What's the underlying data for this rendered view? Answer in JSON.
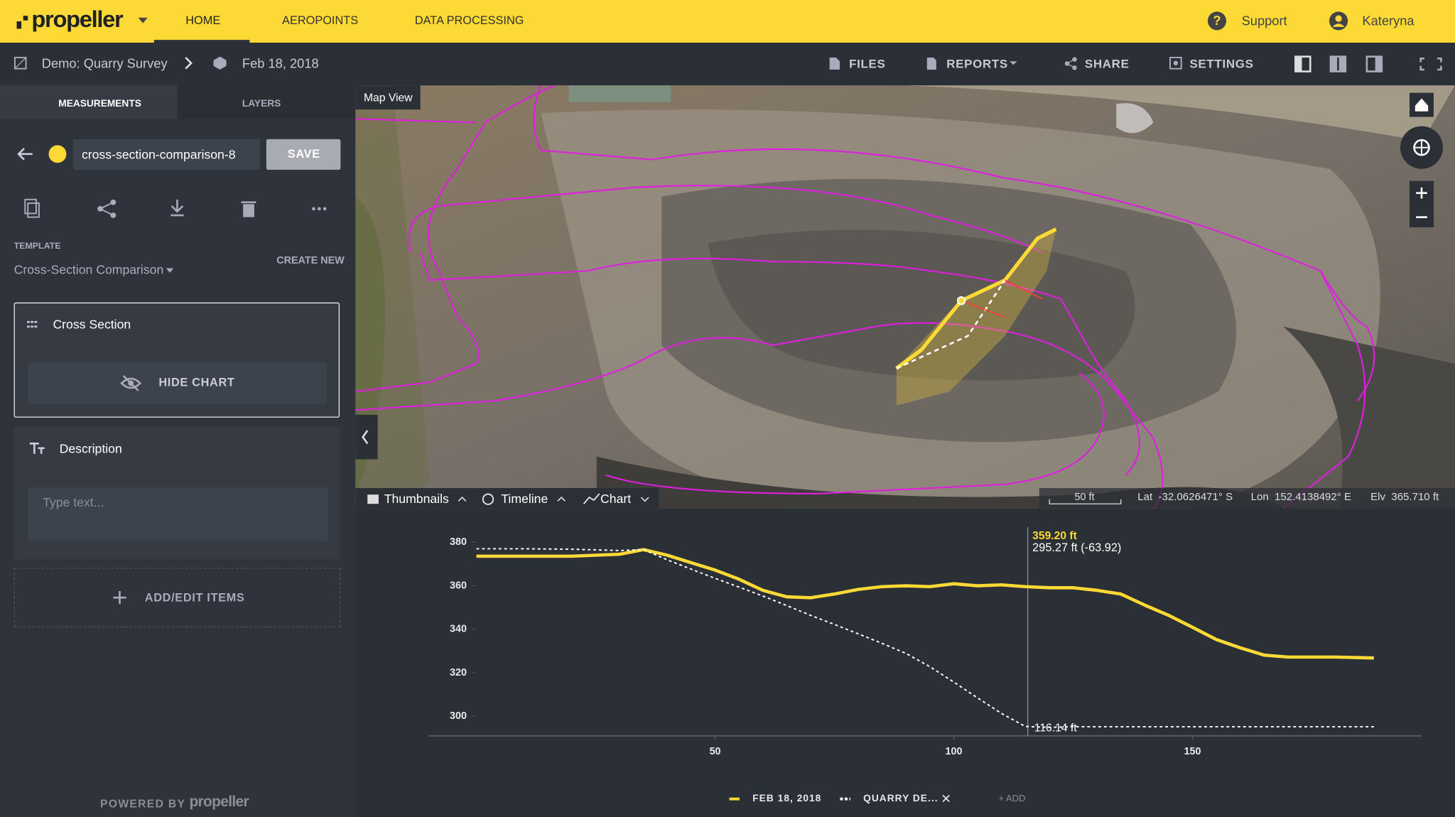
{
  "header": {
    "logo": "propeller",
    "nav": [
      "HOME",
      "AEROPOINTS",
      "DATA PROCESSING"
    ],
    "support": "Support",
    "user": "Kateryna"
  },
  "toolbar": {
    "project": "Demo: Quarry Survey",
    "date": "Feb 18, 2018",
    "actions": [
      "FILES",
      "REPORTS",
      "SHARE",
      "SETTINGS"
    ]
  },
  "sidebar": {
    "tabs": [
      "MEASUREMENTS",
      "LAYERS"
    ],
    "name": "cross-section-comparison-8",
    "save": "SAVE",
    "template_label": "TEMPLATE",
    "template": "Cross-Section Comparison",
    "create_new": "CREATE NEW",
    "cross_section": "Cross Section",
    "hide_chart": "HIDE CHART",
    "description": "Description",
    "placeholder": "Type text...",
    "add_items": "ADD/EDIT ITEMS",
    "powered_by": "POWERED BY",
    "powered_logo": "propeller"
  },
  "map": {
    "label": "Map View",
    "tabs": [
      "Thumbnails",
      "Timeline",
      "Chart"
    ],
    "scale": "50 ft",
    "lat": "Lat  -32.0626471° S",
    "lon": "Lon  152.4138492° E",
    "elv": "Elv  365.710 ft"
  },
  "chart_data": {
    "type": "line",
    "x": [
      0,
      10,
      20,
      30,
      35,
      40,
      45,
      50,
      55,
      60,
      65,
      70,
      75,
      80,
      85,
      90,
      95,
      100,
      105,
      110,
      115,
      120,
      125,
      130,
      135,
      140,
      145,
      150,
      155,
      160,
      165,
      170,
      175,
      180,
      188
    ],
    "series": [
      {
        "name": "FEB 18, 2018",
        "color": "#fcd934",
        "dash": false,
        "values": [
          373.6,
          373.6,
          373.6,
          374.5,
          376.6,
          374,
          370.6,
          367.2,
          363,
          357.9,
          354.9,
          354.5,
          356.2,
          358.3,
          359.6,
          360,
          359.6,
          360.9,
          360,
          360.4,
          359.6,
          359.1,
          359.1,
          357.9,
          356.2,
          351.1,
          346.4,
          340.9,
          335.3,
          331.5,
          328.1,
          327.2,
          327.2,
          327.2,
          326.8
        ]
      },
      {
        "name": "QUARRY DE...",
        "color": "#ffffff",
        "dash": true,
        "values": [
          377,
          377,
          376.8,
          376.2,
          376.6,
          371.9,
          367.6,
          363.4,
          359.4,
          355.3,
          350.9,
          346.4,
          342.2,
          337.9,
          333.5,
          328.9,
          322.8,
          315.7,
          308.4,
          301.3,
          295.3,
          294.9,
          295.2,
          295.2,
          295.2,
          295.2,
          295.2,
          295.2,
          295.2,
          295.2,
          295.2,
          295.2,
          295.2,
          295.2,
          295.2
        ]
      }
    ],
    "xlim": [
      -10,
      198
    ],
    "ylim": [
      291,
      384
    ],
    "xticks": [
      50,
      100,
      150
    ],
    "yticks": [
      300,
      320,
      340,
      360,
      380
    ],
    "cursor_x": 115.5,
    "annotations": [
      "359.20 ft",
      "295.27 ft (-63.92)",
      "116.14 ft"
    ],
    "legend_add": "+ ADD"
  }
}
